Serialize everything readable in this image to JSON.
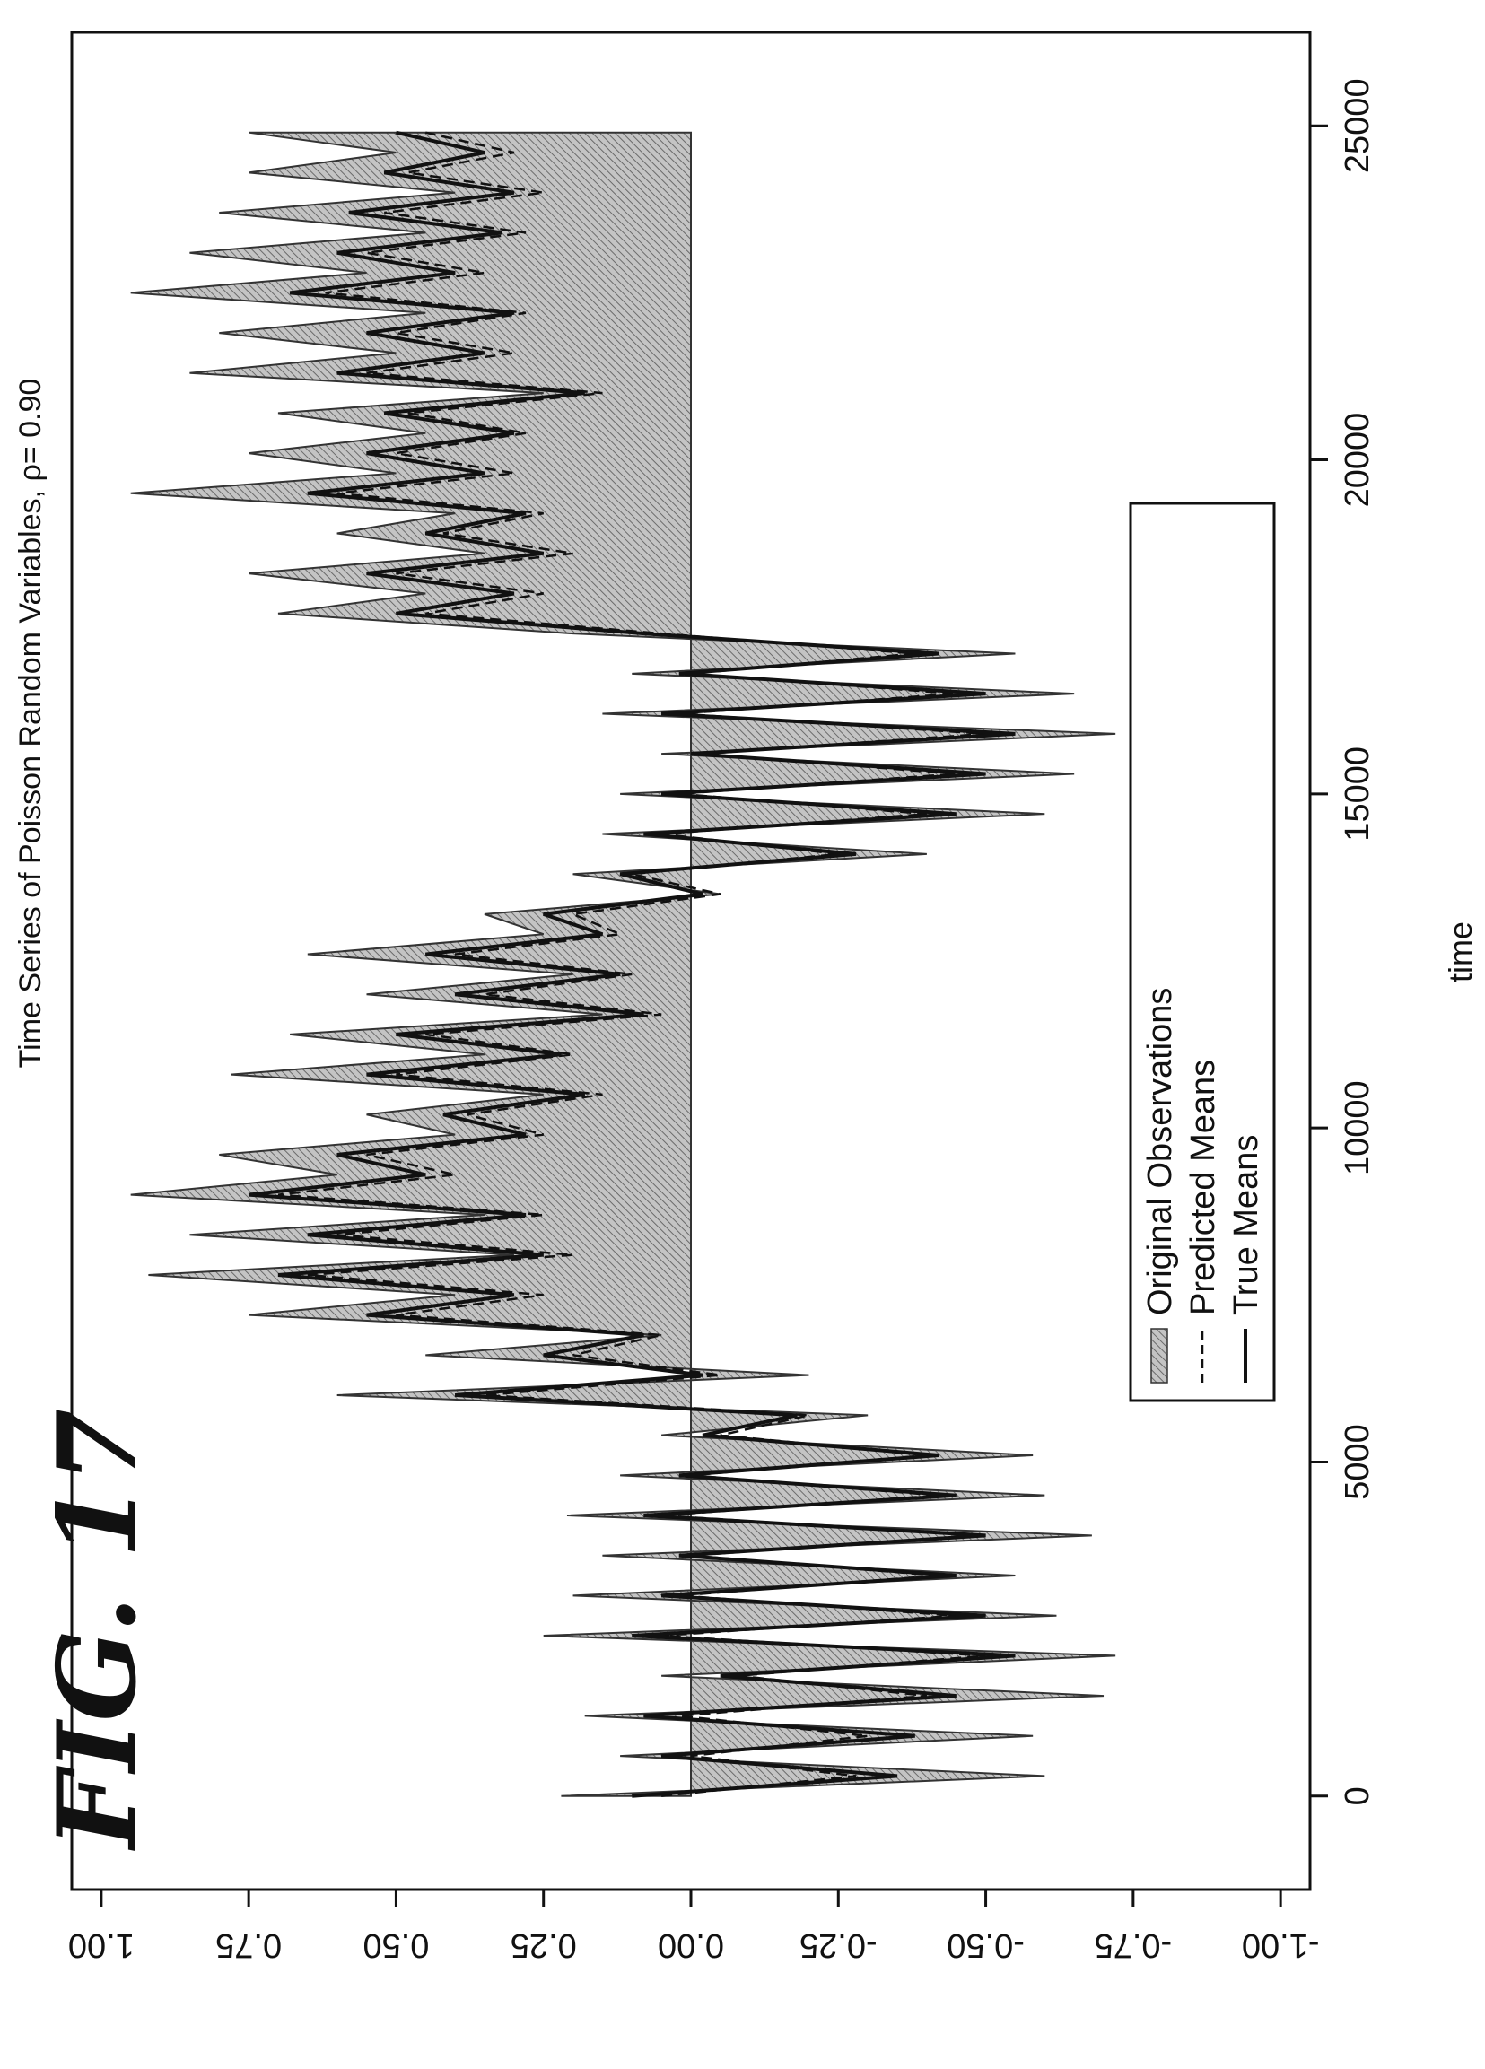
{
  "figure_label": "FIG. 17",
  "chart_data": {
    "type": "area",
    "title": "Time Series of Poisson Random Variables, ρ= 0.90",
    "xlabel": "time",
    "ylabel": "",
    "xlim": [
      -1400,
      26400
    ],
    "ylim": [
      -1.05,
      1.05
    ],
    "x_ticks": [
      0,
      5000,
      10000,
      15000,
      20000,
      25000
    ],
    "x_tick_labels": [
      "0",
      "5000",
      "10000",
      "15000",
      "20000",
      "25000"
    ],
    "y_ticks": [
      1.0,
      0.75,
      0.5,
      0.25,
      0.0,
      -0.25,
      -0.5,
      -0.75,
      -1.0
    ],
    "y_tick_labels": [
      "1.00",
      "0.75",
      "0.50",
      "0.25",
      "0.00",
      "-0.25",
      "-0.50",
      "-0.75",
      "-1.00"
    ],
    "grid": false,
    "legend_position": "bottom-left",
    "series": [
      {
        "name": "Original Observations",
        "style": "hatched-area",
        "x": [
          0,
          300,
          600,
          900,
          1200,
          1500,
          1800,
          2100,
          2400,
          2700,
          3000,
          3300,
          3600,
          3900,
          4200,
          4500,
          4800,
          5100,
          5400,
          5700,
          6000,
          6300,
          6600,
          6900,
          7200,
          7500,
          7800,
          8100,
          8400,
          8700,
          9000,
          9300,
          9600,
          9900,
          10200,
          10500,
          10800,
          11100,
          11400,
          11700,
          12000,
          12300,
          12600,
          12900,
          13200,
          13500,
          13800,
          14100,
          14400,
          14700,
          15000,
          15300,
          15600,
          15900,
          16200,
          16500,
          16800,
          17100,
          17400,
          17700,
          18000,
          18300,
          18600,
          18900,
          19200,
          19500,
          19800,
          20100,
          20400,
          20700,
          21000,
          21300,
          21600,
          21900,
          22200,
          22500,
          22800,
          23100,
          23400,
          23700,
          24000,
          24300,
          24600,
          24900
        ],
        "values": [
          0.22,
          -0.6,
          0.12,
          -0.58,
          0.18,
          -0.7,
          0.05,
          -0.72,
          0.25,
          -0.62,
          0.2,
          -0.55,
          0.15,
          -0.68,
          0.21,
          -0.6,
          0.12,
          -0.58,
          0.05,
          -0.3,
          0.6,
          -0.2,
          0.45,
          0.05,
          0.75,
          0.4,
          0.92,
          0.3,
          0.85,
          0.35,
          0.95,
          0.6,
          0.8,
          0.4,
          0.55,
          0.25,
          0.78,
          0.35,
          0.68,
          0.15,
          0.55,
          0.2,
          0.65,
          0.25,
          0.35,
          -0.05,
          0.2,
          -0.4,
          0.15,
          -0.6,
          0.12,
          -0.65,
          0.05,
          -0.72,
          0.15,
          -0.65,
          0.1,
          -0.55,
          0.2,
          0.7,
          0.45,
          0.75,
          0.35,
          0.6,
          0.4,
          0.95,
          0.5,
          0.75,
          0.45,
          0.7,
          0.25,
          0.85,
          0.5,
          0.8,
          0.45,
          0.95,
          0.55,
          0.85,
          0.45,
          0.8,
          0.4,
          0.75,
          0.5,
          0.75
        ]
      },
      {
        "name": "Predicted Means",
        "style": "dashed",
        "x": [
          0,
          300,
          600,
          900,
          1200,
          1500,
          1800,
          2100,
          2400,
          2700,
          3000,
          3300,
          3600,
          3900,
          4200,
          4500,
          4800,
          5100,
          5400,
          5700,
          6000,
          6300,
          6600,
          6900,
          7200,
          7500,
          7800,
          8100,
          8400,
          8700,
          9000,
          9300,
          9600,
          9900,
          10200,
          10500,
          10800,
          11100,
          11400,
          11700,
          12000,
          12300,
          12600,
          12900,
          13200,
          13500,
          13800,
          14100,
          14400,
          14700,
          15000,
          15300,
          15600,
          15900,
          16200,
          16500,
          16800,
          17100,
          17400,
          17700,
          18000,
          18300,
          18600,
          18900,
          19200,
          19500,
          19800,
          20100,
          20400,
          20700,
          21000,
          21300,
          21600,
          21900,
          22200,
          22500,
          22800,
          23100,
          23400,
          23700,
          24000,
          24300,
          24600,
          24900
        ],
        "values": [
          0.05,
          -0.28,
          0.0,
          -0.3,
          0.02,
          -0.4,
          -0.08,
          -0.5,
          0.05,
          -0.45,
          0.02,
          -0.42,
          0.0,
          -0.48,
          0.05,
          -0.42,
          0.0,
          -0.4,
          -0.05,
          -0.2,
          0.35,
          -0.05,
          0.2,
          0.05,
          0.5,
          0.25,
          0.65,
          0.2,
          0.6,
          0.25,
          0.7,
          0.4,
          0.55,
          0.25,
          0.38,
          0.15,
          0.5,
          0.2,
          0.45,
          0.05,
          0.35,
          0.1,
          0.4,
          0.12,
          0.2,
          -0.05,
          0.1,
          -0.25,
          0.05,
          -0.4,
          0.02,
          -0.45,
          -0.02,
          -0.5,
          0.02,
          -0.45,
          0.0,
          -0.38,
          0.05,
          0.45,
          0.25,
          0.5,
          0.2,
          0.42,
          0.25,
          0.6,
          0.3,
          0.5,
          0.28,
          0.48,
          0.15,
          0.55,
          0.3,
          0.5,
          0.28,
          0.62,
          0.35,
          0.55,
          0.28,
          0.52,
          0.25,
          0.48,
          0.3,
          0.45
        ]
      },
      {
        "name": "True Means",
        "style": "solid",
        "x": [
          0,
          300,
          600,
          900,
          1200,
          1500,
          1800,
          2100,
          2400,
          2700,
          3000,
          3300,
          3600,
          3900,
          4200,
          4500,
          4800,
          5100,
          5400,
          5700,
          6000,
          6300,
          6600,
          6900,
          7200,
          7500,
          7800,
          8100,
          8400,
          8700,
          9000,
          9300,
          9600,
          9900,
          10200,
          10500,
          10800,
          11100,
          11400,
          11700,
          12000,
          12300,
          12600,
          12900,
          13200,
          13500,
          13800,
          14100,
          14400,
          14700,
          15000,
          15300,
          15600,
          15900,
          16200,
          16500,
          16800,
          17100,
          17400,
          17700,
          18000,
          18300,
          18600,
          18900,
          19200,
          19500,
          19800,
          20100,
          20400,
          20700,
          21000,
          21300,
          21600,
          21900,
          22200,
          22500,
          22800,
          23100,
          23400,
          23700,
          24000,
          24300,
          24600,
          24900
        ],
        "values": [
          0.1,
          -0.35,
          0.05,
          -0.38,
          0.08,
          -0.45,
          -0.05,
          -0.55,
          0.1,
          -0.5,
          0.05,
          -0.45,
          0.02,
          -0.5,
          0.08,
          -0.45,
          0.02,
          -0.42,
          -0.02,
          -0.18,
          0.4,
          -0.02,
          0.25,
          0.08,
          0.55,
          0.3,
          0.7,
          0.25,
          0.65,
          0.28,
          0.75,
          0.45,
          0.6,
          0.28,
          0.42,
          0.18,
          0.55,
          0.22,
          0.5,
          0.08,
          0.4,
          0.12,
          0.45,
          0.15,
          0.25,
          -0.02,
          0.12,
          -0.28,
          0.08,
          -0.45,
          0.05,
          -0.5,
          0.0,
          -0.55,
          0.05,
          -0.5,
          0.02,
          -0.42,
          0.08,
          0.5,
          0.3,
          0.55,
          0.25,
          0.45,
          0.28,
          0.65,
          0.35,
          0.55,
          0.3,
          0.52,
          0.18,
          0.6,
          0.35,
          0.55,
          0.3,
          0.68,
          0.4,
          0.6,
          0.32,
          0.58,
          0.3,
          0.52,
          0.35,
          0.5
        ]
      }
    ]
  }
}
